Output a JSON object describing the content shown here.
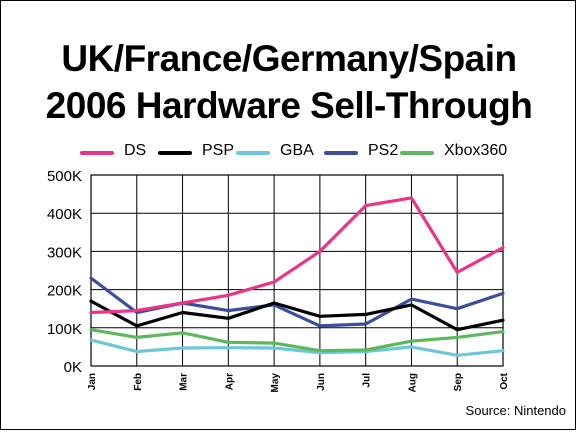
{
  "title_line1": "UK/France/Germany/Spain",
  "title_line2": "2006 Hardware Sell-Through",
  "source": "Source: Nintendo",
  "chart_data": {
    "type": "line",
    "x": [
      "Jan",
      "Feb",
      "Mar",
      "Apr",
      "May",
      "Jun",
      "Jul",
      "Aug",
      "Sep",
      "Oct"
    ],
    "ylim": [
      0,
      500000
    ],
    "yticks": [
      0,
      100000,
      200000,
      300000,
      400000,
      500000
    ],
    "ytick_labels": [
      "0K",
      "100K",
      "200K",
      "300K",
      "400K",
      "500K"
    ],
    "grid": true,
    "legend_placement": "top",
    "series": [
      {
        "name": "DS",
        "color": "#e8358a",
        "values": [
          140000,
          145000,
          165000,
          185000,
          220000,
          300000,
          420000,
          440000,
          245000,
          310000
        ]
      },
      {
        "name": "PSP",
        "color": "#000000",
        "values": [
          170000,
          105000,
          140000,
          125000,
          165000,
          130000,
          135000,
          160000,
          95000,
          120000
        ]
      },
      {
        "name": "GBA",
        "color": "#6cc8d8",
        "values": [
          68000,
          38000,
          47000,
          48000,
          47000,
          35000,
          38000,
          50000,
          28000,
          40000
        ]
      },
      {
        "name": "PS2",
        "color": "#3a4e9e",
        "values": [
          230000,
          140000,
          165000,
          145000,
          160000,
          105000,
          110000,
          175000,
          150000,
          190000
        ]
      },
      {
        "name": "Xbox360",
        "color": "#5cb85c",
        "values": [
          95000,
          75000,
          87000,
          62000,
          60000,
          40000,
          42000,
          65000,
          75000,
          90000
        ]
      }
    ]
  }
}
